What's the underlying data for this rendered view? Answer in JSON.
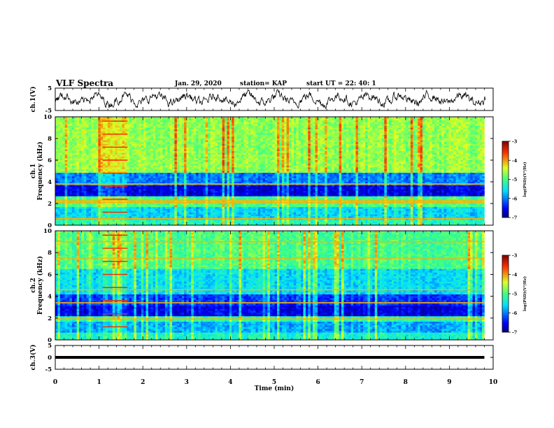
{
  "header": {
    "title": "VLF Spectra",
    "date": "Jan. 29, 2020",
    "station": "station= KAP",
    "start_ut": "start UT =  22: 40: 1"
  },
  "chart_data": [
    {
      "type": "line",
      "panel": "ch1-waveform",
      "ylabel": "ch.1(V)",
      "ylim": [
        -5,
        5
      ],
      "yticks": [
        "5",
        "-5"
      ],
      "xlim": [
        0,
        10
      ],
      "series": [
        {
          "color": "#000000",
          "values_note_none": null
        }
      ]
    },
    {
      "type": "heatmap",
      "panel": "ch1-spectrogram",
      "ylabel": "ch.1\nFrequency (kHz)",
      "ylim": [
        0,
        10
      ],
      "yticks": [
        "0",
        "2",
        "4",
        "6",
        "8",
        "10"
      ],
      "xlim": [
        0,
        9.8
      ],
      "colorbar": {
        "label": "log(PSD)(V²/Hz)",
        "range": [
          -7,
          -3
        ],
        "ticks": [
          "-3",
          "-4",
          "-5",
          "-6",
          "-7"
        ]
      },
      "interference_window_min": [
        1.08,
        1.65
      ],
      "strong_bands_khz": [
        0.6,
        2.1,
        2.3,
        3.8
      ]
    },
    {
      "type": "heatmap",
      "panel": "ch2-spectrogram",
      "ylabel": "ch.2\nFrequency (kHz)",
      "ylim": [
        0,
        10
      ],
      "yticks": [
        "0",
        "2",
        "4",
        "6",
        "8",
        "10"
      ],
      "xlim": [
        0,
        9.8
      ],
      "colorbar": {
        "label": "log(PSD)(V²/Hz)",
        "range": [
          -7,
          -3
        ],
        "ticks": [
          "-3",
          "-4",
          "-5",
          "-6",
          "-7"
        ]
      },
      "interference_window_min": [
        1.08,
        1.65
      ],
      "strong_bands_khz": [
        1.9,
        3.4,
        4.6,
        7.5,
        9.0
      ]
    },
    {
      "type": "line",
      "panel": "ch3-waveform",
      "ylabel": "ch.3(V)",
      "ylim": [
        -5,
        5
      ],
      "yticks": [
        "5",
        "0",
        "-5"
      ],
      "xlim": [
        0,
        9.8
      ],
      "series": [
        {
          "color": "#000000",
          "constant_value": 0
        }
      ]
    }
  ],
  "xaxis": {
    "label": "Time (min)",
    "ticks": [
      "0",
      "1",
      "2",
      "3",
      "4",
      "5",
      "6",
      "7",
      "8",
      "9",
      "10"
    ],
    "range": [
      0,
      10
    ]
  }
}
